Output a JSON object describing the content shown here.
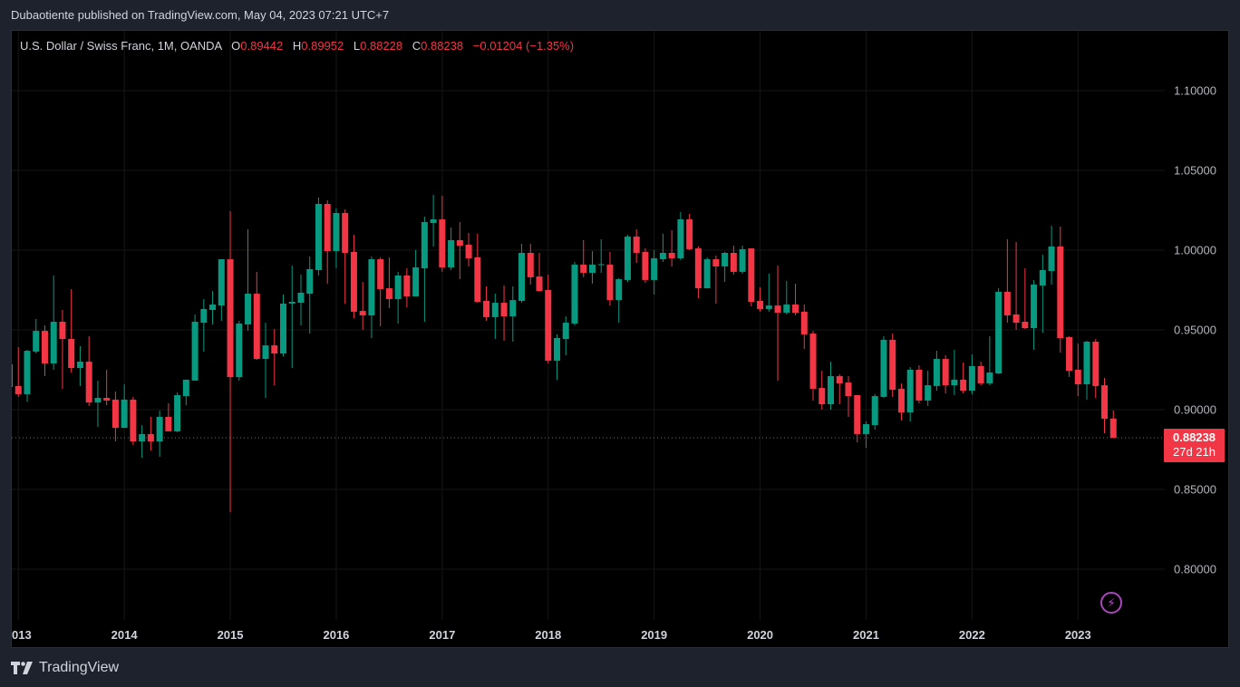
{
  "header": {
    "published": "Dubaotiente published on TradingView.com, May 04, 2023 07:21 UTC+7"
  },
  "legend": {
    "symbol": "U.S. Dollar / Swiss Franc, 1M, OANDA",
    "o_label": "O",
    "o": "0.89442",
    "h_label": "H",
    "h": "0.89952",
    "l_label": "L",
    "l": "0.88228",
    "c_label": "C",
    "c": "0.88238",
    "change": "−0.01204 (−1.35%)"
  },
  "last_price": {
    "price": "0.88238",
    "countdown": "27d 21h"
  },
  "brand": {
    "name": "TradingView"
  },
  "icons": {
    "bolt": "lightning-icon",
    "logo": "tradingview-logo-icon"
  },
  "colors": {
    "up": "#089981",
    "down": "#f23645",
    "grid": "#161616",
    "axis_text": "#b2b5be"
  },
  "chart_data": {
    "type": "candlestick",
    "title": "U.S. Dollar / Swiss Franc, 1M, OANDA",
    "interval": "1M",
    "start": "2012-12",
    "ylim": [
      0.765,
      1.135
    ],
    "y_ticks": [
      "0.80000",
      "0.85000",
      "0.90000",
      "0.95000",
      "1.00000",
      "1.05000",
      "1.10000"
    ],
    "x_ticks": [
      "2013",
      "2014",
      "2015",
      "2016",
      "2017",
      "2018",
      "2019",
      "2020",
      "2021",
      "2022",
      "2023"
    ],
    "grid": true,
    "ohlc": [
      [
        0.9284,
        0.93,
        0.912,
        0.9142
      ],
      [
        0.9148,
        0.9392,
        0.9081,
        0.9097
      ],
      [
        0.9097,
        0.9375,
        0.9048,
        0.9369
      ],
      [
        0.9364,
        0.9568,
        0.9352,
        0.9494
      ],
      [
        0.9494,
        0.9528,
        0.921,
        0.929
      ],
      [
        0.929,
        0.9841,
        0.925,
        0.9551
      ],
      [
        0.9551,
        0.9625,
        0.9131,
        0.9443
      ],
      [
        0.9443,
        0.9756,
        0.9233,
        0.9261
      ],
      [
        0.9261,
        0.9398,
        0.9148,
        0.9301
      ],
      [
        0.9301,
        0.946,
        0.9023,
        0.9045
      ],
      [
        0.9045,
        0.9182,
        0.8892,
        0.9074
      ],
      [
        0.9074,
        0.925,
        0.9028,
        0.9057
      ],
      [
        0.9063,
        0.9114,
        0.8801,
        0.8886
      ],
      [
        0.8886,
        0.9159,
        0.8886,
        0.9063
      ],
      [
        0.9063,
        0.908,
        0.8778,
        0.8801
      ],
      [
        0.8801,
        0.8903,
        0.8699,
        0.8847
      ],
      [
        0.8847,
        0.8955,
        0.8744,
        0.8801
      ],
      [
        0.8801,
        0.8994,
        0.8705,
        0.8955
      ],
      [
        0.8955,
        0.904,
        0.8864,
        0.8864
      ],
      [
        0.8864,
        0.9108,
        0.8858,
        0.9091
      ],
      [
        0.9085,
        0.9188,
        0.9028,
        0.9188
      ],
      [
        0.9182,
        0.9597,
        0.9182,
        0.9551
      ],
      [
        0.9545,
        0.9693,
        0.9364,
        0.9631
      ],
      [
        0.9625,
        0.9744,
        0.9534,
        0.9659
      ],
      [
        0.9653,
        0.9943,
        0.9557,
        0.9943
      ],
      [
        0.9943,
        1.0244,
        0.8358,
        0.9204
      ],
      [
        0.9204,
        0.9557,
        0.9182,
        0.954
      ],
      [
        0.9534,
        1.0131,
        0.9494,
        0.9727
      ],
      [
        0.9727,
        0.9864,
        0.9312,
        0.9318
      ],
      [
        0.9318,
        0.9545,
        0.9074,
        0.9403
      ],
      [
        0.9403,
        0.9506,
        0.9153,
        0.9352
      ],
      [
        0.9352,
        0.9722,
        0.9335,
        0.9665
      ],
      [
        0.9665,
        0.9903,
        0.9261,
        0.9676
      ],
      [
        0.967,
        0.9847,
        0.9528,
        0.9733
      ],
      [
        0.9727,
        0.996,
        0.9477,
        0.9881
      ],
      [
        0.9875,
        1.033,
        0.9841,
        1.029
      ],
      [
        1.029,
        1.0313,
        0.979,
        0.9994
      ],
      [
        0.9994,
        1.0261,
        0.9886,
        1.0233
      ],
      [
        1.0233,
        1.0256,
        0.9665,
        0.9983
      ],
      [
        0.9989,
        1.0097,
        0.9574,
        0.9614
      ],
      [
        0.9619,
        0.9801,
        0.95,
        0.9591
      ],
      [
        0.9591,
        0.996,
        0.9449,
        0.9943
      ],
      [
        0.9943,
        0.9955,
        0.9523,
        0.9756
      ],
      [
        0.9761,
        0.9955,
        0.9636,
        0.9693
      ],
      [
        0.9693,
        0.9864,
        0.954,
        0.9841
      ],
      [
        0.9841,
        0.9886,
        0.9642,
        0.971
      ],
      [
        0.971,
        1.0,
        0.971,
        0.9892
      ],
      [
        0.9886,
        1.021,
        0.9551,
        1.0176
      ],
      [
        1.017,
        1.0347,
        1.0023,
        1.0193
      ],
      [
        1.0193,
        1.0341,
        0.9864,
        0.9892
      ],
      [
        0.9892,
        1.0142,
        0.9875,
        1.0063
      ],
      [
        1.0063,
        1.0176,
        0.9818,
        1.0028
      ],
      [
        1.0034,
        1.0108,
        0.9898,
        0.9949
      ],
      [
        0.9955,
        1.0103,
        0.967,
        0.9676
      ],
      [
        0.9682,
        0.9773,
        0.9557,
        0.958
      ],
      [
        0.958,
        0.9727,
        0.9443,
        0.967
      ],
      [
        0.967,
        0.9778,
        0.9432,
        0.9585
      ],
      [
        0.9585,
        0.9773,
        0.9426,
        0.9687
      ],
      [
        0.9682,
        1.004,
        0.967,
        0.9983
      ],
      [
        0.9983,
        1.004,
        0.9784,
        0.983
      ],
      [
        0.9835,
        0.9983,
        0.9739,
        0.9744
      ],
      [
        0.975,
        0.9847,
        0.929,
        0.9307
      ],
      [
        0.9307,
        0.9472,
        0.9188,
        0.9449
      ],
      [
        0.9443,
        0.9585,
        0.9341,
        0.9545
      ],
      [
        0.954,
        0.9926,
        0.9528,
        0.9909
      ],
      [
        0.9909,
        1.0063,
        0.983,
        0.9858
      ],
      [
        0.9858,
        0.9994,
        0.979,
        0.9909
      ],
      [
        0.9909,
        1.0068,
        0.9858,
        0.9912
      ],
      [
        0.9909,
        0.9989,
        0.9653,
        0.9687
      ],
      [
        0.9687,
        0.9824,
        0.9545,
        0.9818
      ],
      [
        0.9813,
        1.0097,
        0.9801,
        1.0085
      ],
      [
        1.0085,
        1.0131,
        0.992,
        0.9983
      ],
      [
        0.9989,
        1.0011,
        0.9795,
        0.9813
      ],
      [
        0.9813,
        1.0,
        0.9722,
        0.9949
      ],
      [
        0.9943,
        1.0103,
        0.9926,
        0.9983
      ],
      [
        0.9983,
        1.0125,
        0.9898,
        0.9949
      ],
      [
        0.9949,
        1.0239,
        0.9938,
        1.0193
      ],
      [
        1.0193,
        1.0227,
        1.0,
        1.0006
      ],
      [
        1.0011,
        1.0023,
        0.9699,
        0.9761
      ],
      [
        0.9761,
        0.9955,
        0.9761,
        0.9943
      ],
      [
        0.9943,
        0.9966,
        0.9665,
        0.9898
      ],
      [
        0.9898,
        0.9989,
        0.9801,
        0.9983
      ],
      [
        0.9983,
        1.0028,
        0.9847,
        0.9864
      ],
      [
        0.9864,
        1.0028,
        0.9852,
        1.0006
      ],
      [
        1.0011,
        1.0011,
        0.9648,
        0.9676
      ],
      [
        0.9682,
        0.9767,
        0.9614,
        0.9631
      ],
      [
        0.9631,
        0.9852,
        0.9614,
        0.9653
      ],
      [
        0.9653,
        0.9903,
        0.9182,
        0.9608
      ],
      [
        0.9608,
        0.9807,
        0.9597,
        0.9659
      ],
      [
        0.9659,
        0.979,
        0.9591,
        0.9608
      ],
      [
        0.9614,
        0.9659,
        0.9381,
        0.9472
      ],
      [
        0.9477,
        0.9494,
        0.9057,
        0.9131
      ],
      [
        0.9136,
        0.9244,
        0.9,
        0.9034
      ],
      [
        0.9034,
        0.9301,
        0.9,
        0.921
      ],
      [
        0.921,
        0.9222,
        0.9034,
        0.9165
      ],
      [
        0.917,
        0.921,
        0.8955,
        0.9085
      ],
      [
        0.9091,
        0.9091,
        0.8795,
        0.8847
      ],
      [
        0.8847,
        0.8926,
        0.8761,
        0.8909
      ],
      [
        0.8903,
        0.9097,
        0.8875,
        0.9085
      ],
      [
        0.908,
        0.946,
        0.9074,
        0.9438
      ],
      [
        0.9438,
        0.9477,
        0.908,
        0.9125
      ],
      [
        0.9131,
        0.9165,
        0.8932,
        0.8983
      ],
      [
        0.8983,
        0.9267,
        0.8926,
        0.925
      ],
      [
        0.925,
        0.9278,
        0.904,
        0.9057
      ],
      [
        0.9057,
        0.9244,
        0.9023,
        0.9153
      ],
      [
        0.9148,
        0.9369,
        0.9119,
        0.9318
      ],
      [
        0.9318,
        0.9341,
        0.9102,
        0.9153
      ],
      [
        0.9153,
        0.9375,
        0.9091,
        0.9188
      ],
      [
        0.9188,
        0.9295,
        0.9102,
        0.9119
      ],
      [
        0.9119,
        0.9347,
        0.9097,
        0.9273
      ],
      [
        0.9273,
        0.9301,
        0.9153,
        0.9165
      ],
      [
        0.9165,
        0.946,
        0.9153,
        0.9233
      ],
      [
        0.9227,
        0.9761,
        0.9222,
        0.9739
      ],
      [
        0.9739,
        1.0068,
        0.9545,
        0.9591
      ],
      [
        0.9597,
        1.0051,
        0.95,
        0.9545
      ],
      [
        0.9551,
        0.9886,
        0.9506,
        0.9511
      ],
      [
        0.9511,
        0.9813,
        0.9375,
        0.9784
      ],
      [
        0.9778,
        0.9972,
        0.9483,
        0.9875
      ],
      [
        0.9869,
        1.0153,
        0.9784,
        1.0023
      ],
      [
        1.0023,
        1.0148,
        0.9358,
        0.9449
      ],
      [
        0.9455,
        0.946,
        0.9205,
        0.9244
      ],
      [
        0.925,
        0.9415,
        0.9085,
        0.9159
      ],
      [
        0.9159,
        0.9432,
        0.9063,
        0.9426
      ],
      [
        0.9426,
        0.9443,
        0.9074,
        0.9148
      ],
      [
        0.9153,
        0.9199,
        0.8852,
        0.8943
      ],
      [
        0.89442,
        0.89952,
        0.88228,
        0.88238
      ]
    ]
  }
}
